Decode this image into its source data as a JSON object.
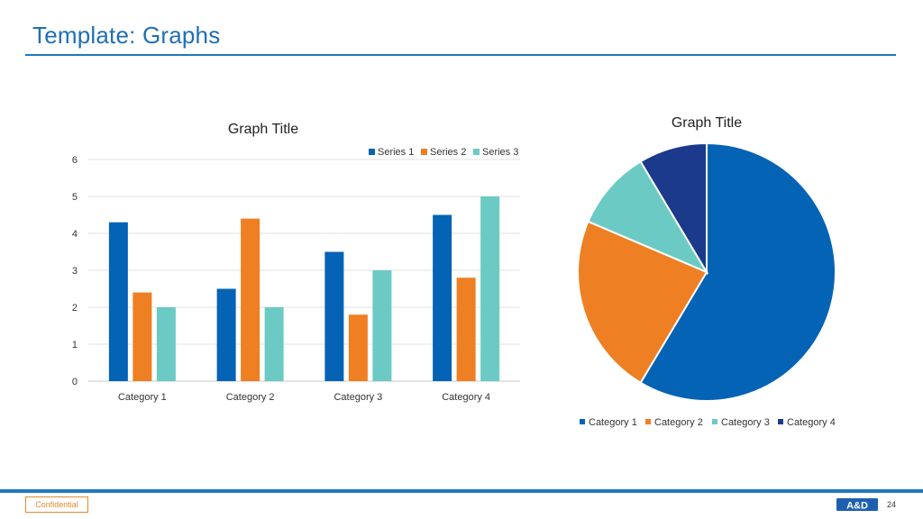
{
  "slide": {
    "title": "Template: Graphs",
    "confidential_label": "Confidential",
    "page_number": "24",
    "logo_text": "A&D"
  },
  "colors": {
    "accent": "#1f78bf",
    "series1": "#0563b5",
    "series2": "#ee7f23",
    "series3": "#6ccac4",
    "category4": "#1b3a8c",
    "confidential": "#e58a2c"
  },
  "chart_data": [
    {
      "type": "bar",
      "title": "Graph Title",
      "categories": [
        "Category 1",
        "Category 2",
        "Category 3",
        "Category 4"
      ],
      "series": [
        {
          "name": "Series 1",
          "values": [
            4.3,
            2.5,
            3.5,
            4.5
          ]
        },
        {
          "name": "Series 2",
          "values": [
            2.4,
            4.4,
            1.8,
            2.8
          ]
        },
        {
          "name": "Series 3",
          "values": [
            2.0,
            2.0,
            3.0,
            5.0
          ]
        }
      ],
      "ylim": [
        0,
        6
      ],
      "yticks": [
        "0",
        "1",
        "2",
        "3",
        "4",
        "5",
        "6"
      ],
      "grid": true,
      "legend": "top-right"
    },
    {
      "type": "pie",
      "title": "Graph Title",
      "labels": [
        "Category 1",
        "Category 2",
        "Category 3",
        "Category 4"
      ],
      "values": [
        8.2,
        3.2,
        1.4,
        1.2
      ],
      "legend": "bottom"
    }
  ]
}
